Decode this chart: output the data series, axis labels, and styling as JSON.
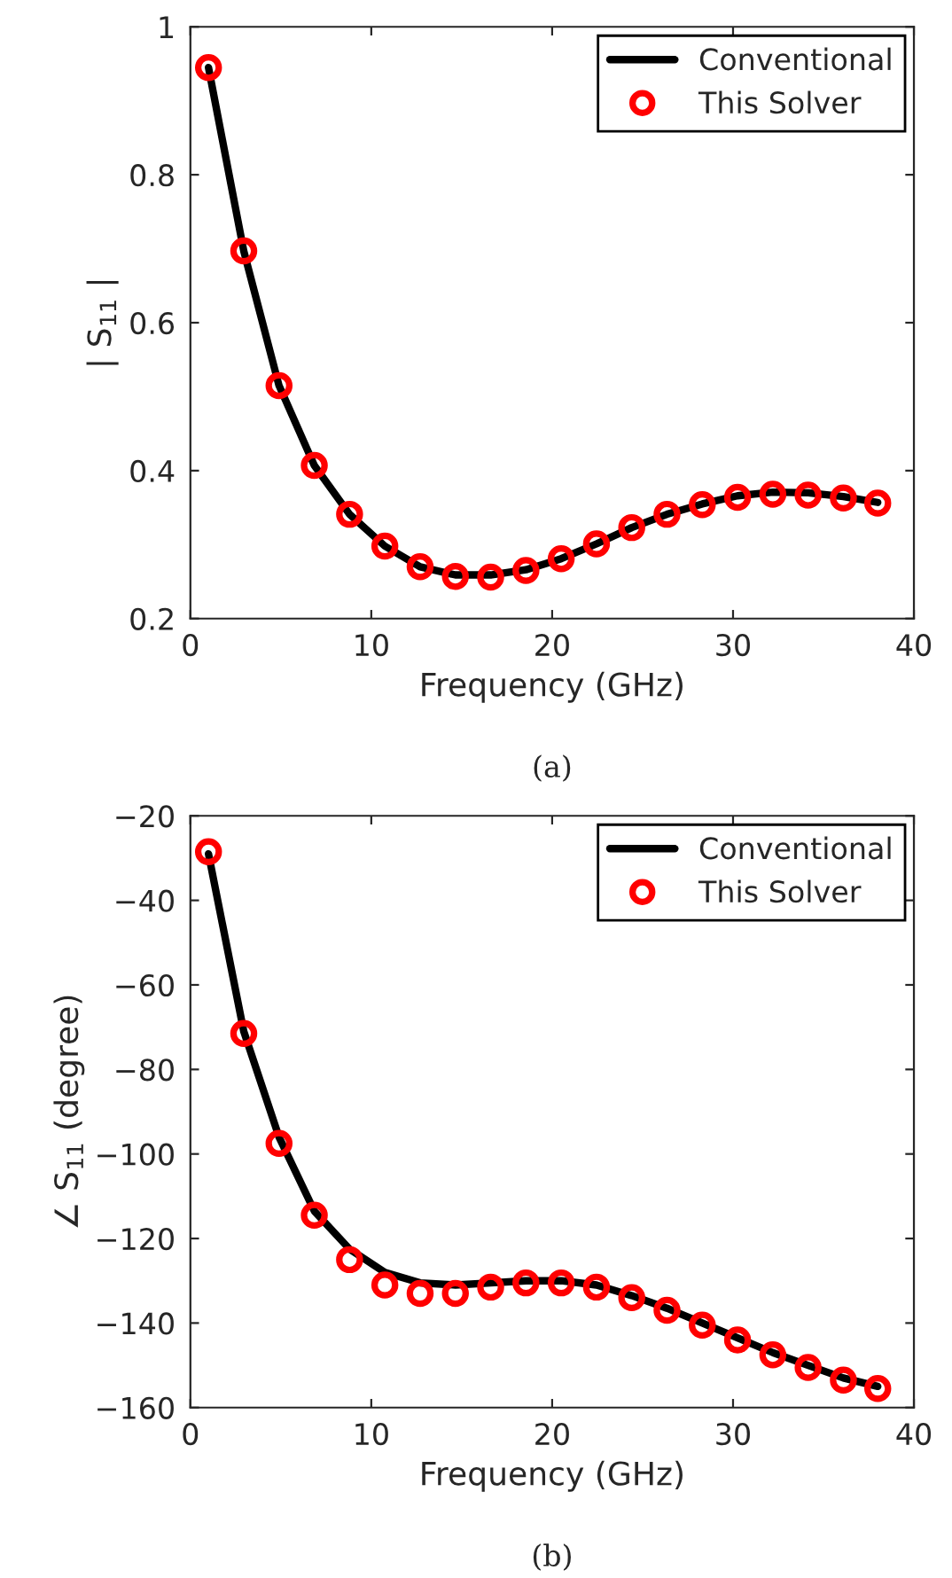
{
  "chart_data": [
    {
      "type": "line",
      "xlabel": "Frequency (GHz)",
      "ylabel": "| S$_{11}$ |",
      "annotations": [
        "(a)"
      ],
      "xlim": [
        0,
        40
      ],
      "xticks": [
        0,
        10,
        20,
        30,
        40
      ],
      "ylim": [
        0.2,
        1
      ],
      "yticks": [
        0.2,
        0.4,
        0.6,
        0.8,
        1
      ],
      "legend": "top right",
      "grid": false,
      "series": [
        {
          "name": "Conventional",
          "color": "#000000",
          "marker": "none",
          "line_style": "solid",
          "x": [
            1,
            2.95,
            4.9,
            6.85,
            8.8,
            10.75,
            12.7,
            14.65,
            16.6,
            18.55,
            20.5,
            22.45,
            24.4,
            26.35,
            28.3,
            30.25,
            32.2,
            34.15,
            36.1,
            38
          ],
          "values": [
            0.945,
            0.697,
            0.515,
            0.407,
            0.341,
            0.298,
            0.27,
            0.259,
            0.259,
            0.266,
            0.281,
            0.301,
            0.323,
            0.341,
            0.355,
            0.366,
            0.371,
            0.37,
            0.365,
            0.357
          ]
        },
        {
          "name": "This Solver",
          "type": "scatter",
          "color": "#ff0000",
          "marker": "circle",
          "x": [
            1,
            2.95,
            4.9,
            6.85,
            8.8,
            10.75,
            12.7,
            14.65,
            16.6,
            18.55,
            20.5,
            22.45,
            24.4,
            26.35,
            28.3,
            30.25,
            32.2,
            34.15,
            36.1,
            38
          ],
          "values": [
            0.945,
            0.697,
            0.515,
            0.407,
            0.341,
            0.298,
            0.27,
            0.257,
            0.256,
            0.265,
            0.281,
            0.301,
            0.323,
            0.341,
            0.354,
            0.364,
            0.368,
            0.367,
            0.363,
            0.356
          ]
        }
      ]
    },
    {
      "type": "line",
      "xlabel": "Frequency (GHz)",
      "ylabel": "∠ S$_{11}$ (degree)",
      "annotations": [
        "(b)"
      ],
      "xlim": [
        0,
        40
      ],
      "xticks": [
        0,
        10,
        20,
        30,
        40
      ],
      "ylim": [
        -160,
        -20
      ],
      "yticks": [
        -160,
        -140,
        -120,
        -100,
        -80,
        -60,
        -40,
        -20
      ],
      "legend": "top right",
      "grid": false,
      "series": [
        {
          "name": "Conventional",
          "color": "#000000",
          "marker": "none",
          "line_style": "solid",
          "x": [
            1,
            2.95,
            4.9,
            6.85,
            8.8,
            10.75,
            12.7,
            14.65,
            16.6,
            18.55,
            20.5,
            22.45,
            24.4,
            26.35,
            28.3,
            30.25,
            32.2,
            34.15,
            36.1,
            38
          ],
          "values": [
            -29,
            -71,
            -96,
            -113.5,
            -122.5,
            -128,
            -130.5,
            -131,
            -130.5,
            -130,
            -130,
            -131,
            -133.5,
            -136.5,
            -140,
            -143.5,
            -147,
            -150,
            -153,
            -155
          ]
        },
        {
          "name": "This Solver",
          "type": "scatter",
          "color": "#ff0000",
          "marker": "circle",
          "x": [
            1,
            2.95,
            4.9,
            6.85,
            8.8,
            10.75,
            12.7,
            14.65,
            16.6,
            18.55,
            20.5,
            22.45,
            24.4,
            26.35,
            28.3,
            30.25,
            32.2,
            34.15,
            36.1,
            38
          ],
          "values": [
            -28.5,
            -71.5,
            -97.5,
            -114.5,
            -125,
            -131,
            -133,
            -133,
            -131.5,
            -130.5,
            -130.5,
            -131.5,
            -134,
            -137,
            -140.5,
            -144,
            -147.5,
            -150.5,
            -153.5,
            -155.5
          ]
        }
      ]
    }
  ]
}
